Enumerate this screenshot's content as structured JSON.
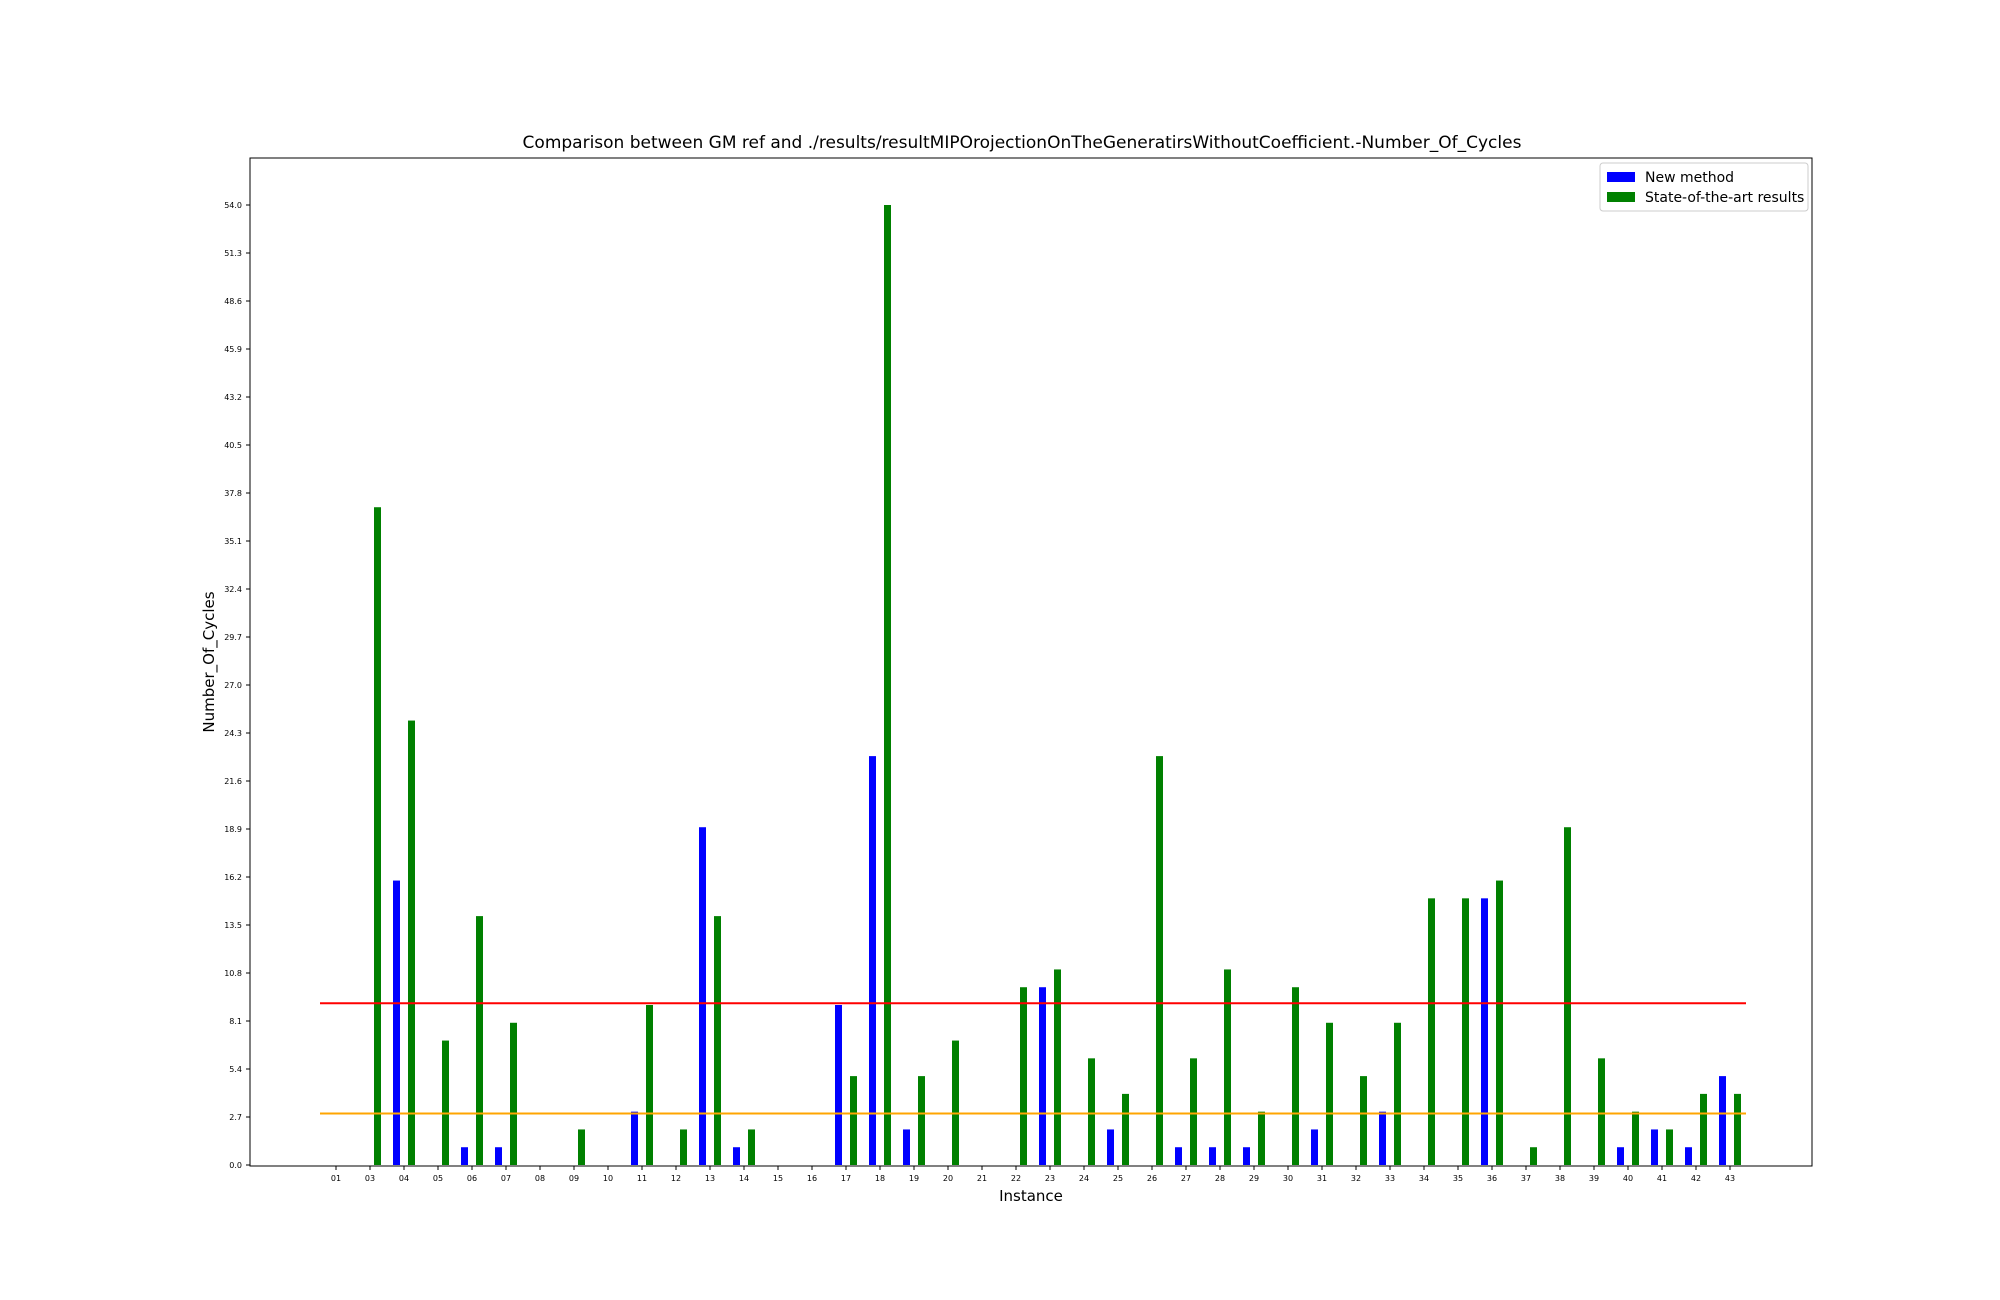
{
  "chart_data": {
    "type": "bar",
    "title": "Comparison between GM ref and ./results/resultMIPOrojectionOnTheGeneratirsWithoutCoefficient.-Number_Of_Cycles",
    "xlabel": "Instance",
    "ylabel": "Number_Of_Cycles",
    "ylim": [
      0,
      56.7
    ],
    "yticks": [
      "0.0",
      "2.7",
      "5.4",
      "8.1",
      "10.8",
      "13.5",
      "16.2",
      "18.9",
      "21.6",
      "24.3",
      "27.0",
      "29.7",
      "32.4",
      "35.1",
      "37.8",
      "40.5",
      "43.2",
      "45.9",
      "48.6",
      "51.3",
      "54.0"
    ],
    "categories": [
      "01",
      "03",
      "04",
      "05",
      "06",
      "07",
      "08",
      "09",
      "10",
      "11",
      "12",
      "13",
      "14",
      "15",
      "16",
      "17",
      "18",
      "19",
      "20",
      "21",
      "22",
      "23",
      "24",
      "25",
      "26",
      "27",
      "28",
      "29",
      "30",
      "31",
      "32",
      "33",
      "34",
      "35",
      "36",
      "37",
      "38",
      "39",
      "40",
      "41",
      "42",
      "43"
    ],
    "series": [
      {
        "name": "New method",
        "color": "#0000ff",
        "values": [
          0,
          0,
          16,
          0,
          1,
          1,
          0,
          0,
          0,
          3,
          0,
          19,
          1,
          0,
          0,
          9,
          23,
          2,
          0,
          0,
          0,
          10,
          0,
          2,
          0,
          1,
          1,
          1,
          0,
          2,
          0,
          3,
          0,
          0,
          15,
          0,
          0,
          0,
          1,
          2,
          1,
          5
        ]
      },
      {
        "name": "State-of-the-art results",
        "color": "#008000",
        "values": [
          0,
          37,
          25,
          7,
          14,
          8,
          0,
          2,
          0,
          9,
          2,
          14,
          2,
          0,
          0,
          5,
          54,
          5,
          7,
          0,
          10,
          11,
          6,
          4,
          23,
          6,
          11,
          3,
          10,
          8,
          5,
          8,
          15,
          15,
          16,
          1,
          19,
          6,
          3,
          2,
          4,
          4
        ]
      }
    ],
    "reference_lines": [
      {
        "value": 9.1,
        "color": "#ff0000"
      },
      {
        "value": 2.9,
        "color": "#ffa500"
      }
    ],
    "legend_position": "top-right",
    "grid": false
  }
}
